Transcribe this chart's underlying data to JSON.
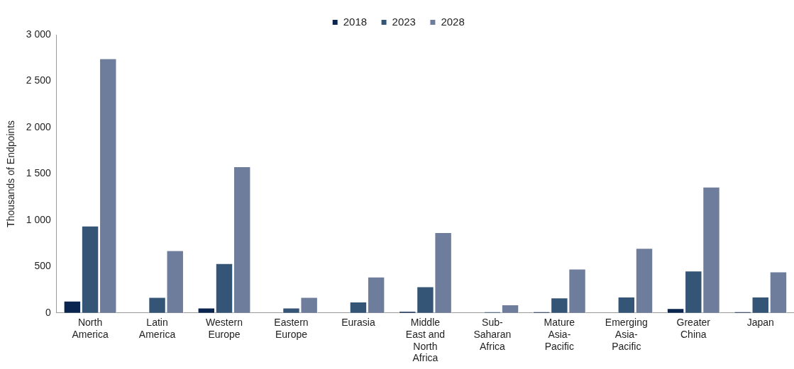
{
  "chart_data": {
    "type": "bar",
    "ylabel": "Thousands of Endpoints",
    "categories": [
      "North America",
      "Latin America",
      "Western Europe",
      "Eastern Europe",
      "Eurasia",
      "Middle East and North Africa",
      "Sub-Saharan Africa",
      "Mature Asia-Pacific",
      "Emerging Asia-Pacific",
      "Greater China",
      "Japan"
    ],
    "series": [
      {
        "name": "2018",
        "color": "#0a2550",
        "values": [
          130,
          0,
          55,
          0,
          0,
          20,
          0,
          15,
          0,
          50,
          15
        ]
      },
      {
        "name": "2023",
        "color": "#355576",
        "values": [
          940,
          170,
          535,
          55,
          120,
          285,
          15,
          165,
          175,
          455,
          175
        ]
      },
      {
        "name": "2028",
        "color": "#6f7d9c",
        "values": [
          2745,
          675,
          1580,
          170,
          390,
          870,
          90,
          475,
          700,
          1360,
          445
        ]
      }
    ],
    "ylim": [
      0,
      3000
    ],
    "yticks": [
      0,
      500,
      {
        "value": 1000,
        "label": "1 000"
      },
      {
        "value": 1500,
        "label": "1 500"
      },
      {
        "value": 2000,
        "label": "2 000"
      },
      {
        "value": 2500,
        "label": "2 500"
      },
      {
        "value": 3000,
        "label": "3 000"
      }
    ],
    "grid": false,
    "legend": "top"
  }
}
